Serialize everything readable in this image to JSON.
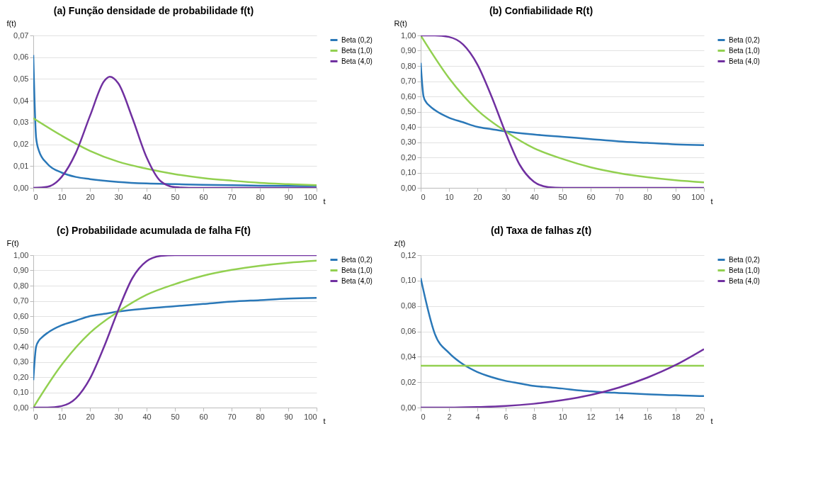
{
  "chart_data": [
    {
      "type": "line",
      "title": "(a) Função densidade de probabilidade f(t)",
      "xlabel": "t",
      "ylabel": "f(t)",
      "xlim": [
        0,
        100
      ],
      "ylim": [
        0,
        0.07
      ],
      "xticks": [
        0,
        10,
        20,
        30,
        40,
        50,
        60,
        70,
        80,
        90,
        100
      ],
      "yticks": [
        {
          "value": 0,
          "label": "0,00"
        },
        {
          "value": 0.01,
          "label": "0,01"
        },
        {
          "value": 0.02,
          "label": "0,02"
        },
        {
          "value": 0.03,
          "label": "0,03"
        },
        {
          "value": 0.04,
          "label": "0,04"
        },
        {
          "value": 0.05,
          "label": "0,05"
        },
        {
          "value": 0.06,
          "label": "0,06"
        },
        {
          "value": 0.07,
          "label": "0,07"
        }
      ],
      "grid": "y",
      "legend": "right",
      "series": [
        {
          "name": "Beta (0,2)",
          "color": "#2a78b8",
          "x": [
            0,
            1,
            2,
            5,
            10,
            15,
            20,
            30,
            40,
            50,
            60,
            70,
            80,
            90,
            100
          ],
          "values": [
            0.061,
            0.023,
            0.017,
            0.011,
            0.007,
            0.005,
            0.004,
            0.0027,
            0.002,
            0.0017,
            0.0014,
            0.0012,
            0.001,
            0.0009,
            0.0008
          ]
        },
        {
          "name": "Beta (1,0)",
          "color": "#92d050",
          "x": [
            0,
            10,
            20,
            30,
            40,
            50,
            60,
            70,
            80,
            90,
            100
          ],
          "values": [
            0.032,
            0.024,
            0.017,
            0.012,
            0.0088,
            0.0063,
            0.0045,
            0.0033,
            0.0023,
            0.0017,
            0.0012
          ]
        },
        {
          "name": "Beta (4,0)",
          "color": "#7030a0",
          "x": [
            0,
            5,
            10,
            15,
            20,
            25,
            27,
            30,
            35,
            40,
            45,
            50,
            55,
            60,
            70,
            80,
            90,
            100
          ],
          "values": [
            0,
            0.0005,
            0.005,
            0.016,
            0.033,
            0.049,
            0.051,
            0.048,
            0.032,
            0.014,
            0.003,
            0.0003,
            0,
            0,
            0,
            0,
            0,
            0
          ]
        }
      ]
    },
    {
      "type": "line",
      "title": "(b) Confiabilidade R(t)",
      "xlabel": "t",
      "ylabel": "R(t)",
      "xlim": [
        0,
        100
      ],
      "ylim": [
        0,
        1
      ],
      "xticks": [
        0,
        10,
        20,
        30,
        40,
        50,
        60,
        70,
        80,
        90,
        100
      ],
      "yticks": [
        {
          "value": 0,
          "label": "0,00"
        },
        {
          "value": 0.1,
          "label": "0,10"
        },
        {
          "value": 0.2,
          "label": "0,20"
        },
        {
          "value": 0.3,
          "label": "0,30"
        },
        {
          "value": 0.4,
          "label": "0,40"
        },
        {
          "value": 0.5,
          "label": "0,50"
        },
        {
          "value": 0.6,
          "label": "0,60"
        },
        {
          "value": 0.7,
          "label": "0,70"
        },
        {
          "value": 0.8,
          "label": "0,80"
        },
        {
          "value": 0.9,
          "label": "0,90"
        },
        {
          "value": 1,
          "label": "1,00"
        }
      ],
      "grid": "y",
      "legend": "right",
      "series": [
        {
          "name": "Beta (0,2)",
          "color": "#2a78b8",
          "x": [
            0,
            1,
            2,
            3,
            5,
            10,
            15,
            20,
            25,
            30,
            40,
            50,
            60,
            70,
            80,
            90,
            100
          ],
          "values": [
            0.82,
            0.6,
            0.56,
            0.54,
            0.51,
            0.46,
            0.43,
            0.4,
            0.385,
            0.37,
            0.35,
            0.335,
            0.32,
            0.305,
            0.295,
            0.285,
            0.28
          ]
        },
        {
          "name": "Beta (1,0)",
          "color": "#92d050",
          "x": [
            0,
            10,
            20,
            30,
            40,
            50,
            60,
            70,
            80,
            90,
            100
          ],
          "values": [
            1,
            0.72,
            0.51,
            0.37,
            0.26,
            0.19,
            0.135,
            0.097,
            0.07,
            0.05,
            0.036
          ]
        },
        {
          "name": "Beta (4,0)",
          "color": "#7030a0",
          "x": [
            0,
            5,
            10,
            15,
            20,
            25,
            30,
            35,
            40,
            45,
            50,
            60,
            70,
            80,
            90,
            100
          ],
          "values": [
            1,
            1,
            0.99,
            0.94,
            0.81,
            0.6,
            0.36,
            0.15,
            0.04,
            0.005,
            0,
            0,
            0,
            0,
            0,
            0
          ]
        }
      ]
    },
    {
      "type": "line",
      "title": "(c) Probabilidade acumulada de falha F(t)",
      "xlabel": "t",
      "ylabel": "F(t)",
      "xlim": [
        0,
        100
      ],
      "ylim": [
        0,
        1
      ],
      "xticks": [
        0,
        10,
        20,
        30,
        40,
        50,
        60,
        70,
        80,
        90,
        100
      ],
      "yticks": [
        {
          "value": 0,
          "label": "0,00"
        },
        {
          "value": 0.1,
          "label": "0,10"
        },
        {
          "value": 0.2,
          "label": "0,20"
        },
        {
          "value": 0.3,
          "label": "0,30"
        },
        {
          "value": 0.4,
          "label": "0,40"
        },
        {
          "value": 0.5,
          "label": "0,50"
        },
        {
          "value": 0.6,
          "label": "0,60"
        },
        {
          "value": 0.7,
          "label": "0,70"
        },
        {
          "value": 0.8,
          "label": "0,80"
        },
        {
          "value": 0.9,
          "label": "0,90"
        },
        {
          "value": 1,
          "label": "1,00"
        }
      ],
      "grid": "y",
      "legend": "right",
      "series": [
        {
          "name": "Beta (0,2)",
          "color": "#2a78b8",
          "x": [
            0,
            1,
            2,
            3,
            5,
            10,
            15,
            20,
            25,
            30,
            40,
            50,
            60,
            70,
            80,
            90,
            100
          ],
          "values": [
            0.18,
            0.4,
            0.44,
            0.46,
            0.49,
            0.54,
            0.57,
            0.6,
            0.615,
            0.63,
            0.65,
            0.665,
            0.68,
            0.695,
            0.705,
            0.715,
            0.72
          ]
        },
        {
          "name": "Beta (1,0)",
          "color": "#92d050",
          "x": [
            0,
            10,
            20,
            30,
            40,
            50,
            60,
            70,
            80,
            90,
            100
          ],
          "values": [
            0,
            0.28,
            0.49,
            0.63,
            0.74,
            0.81,
            0.865,
            0.903,
            0.93,
            0.95,
            0.964
          ]
        },
        {
          "name": "Beta (4,0)",
          "color": "#7030a0",
          "x": [
            0,
            5,
            10,
            15,
            20,
            25,
            30,
            35,
            40,
            45,
            50,
            60,
            70,
            80,
            90,
            100
          ],
          "values": [
            0,
            0,
            0.01,
            0.06,
            0.19,
            0.4,
            0.64,
            0.85,
            0.96,
            0.995,
            1,
            1,
            1,
            1,
            1,
            1
          ]
        }
      ]
    },
    {
      "type": "line",
      "title": "(d) Taxa de falhas z(t)",
      "xlabel": "t",
      "ylabel": "z(t)",
      "xlim": [
        0,
        20
      ],
      "ylim": [
        0,
        0.12
      ],
      "xticks": [
        0,
        2,
        4,
        6,
        8,
        10,
        12,
        14,
        16,
        18,
        20
      ],
      "yticks": [
        {
          "value": 0,
          "label": "0,00"
        },
        {
          "value": 0.02,
          "label": "0,02"
        },
        {
          "value": 0.04,
          "label": "0,04"
        },
        {
          "value": 0.06,
          "label": "0,06"
        },
        {
          "value": 0.08,
          "label": "0,08"
        },
        {
          "value": 0.1,
          "label": "0,10"
        },
        {
          "value": 0.12,
          "label": "0,12"
        }
      ],
      "grid": "y",
      "legend": "right",
      "series": [
        {
          "name": "Beta (0,2)",
          "color": "#2a78b8",
          "x": [
            0,
            1,
            2,
            3,
            4,
            5,
            6,
            7,
            8,
            9,
            10,
            11,
            12,
            13,
            14,
            15,
            16,
            17,
            18,
            19,
            20
          ],
          "values": [
            0.102,
            0.058,
            0.043,
            0.034,
            0.028,
            0.024,
            0.021,
            0.019,
            0.017,
            0.016,
            0.015,
            0.0137,
            0.0128,
            0.012,
            0.0115,
            0.011,
            0.0105,
            0.01,
            0.0097,
            0.0093,
            0.009
          ]
        },
        {
          "name": "Beta (1,0)",
          "color": "#92d050",
          "x": [
            0,
            20
          ],
          "values": [
            0.033,
            0.033
          ]
        },
        {
          "name": "Beta (4,0)",
          "color": "#7030a0",
          "x": [
            0,
            2,
            4,
            6,
            8,
            10,
            12,
            14,
            16,
            18,
            20
          ],
          "values": [
            0,
            0,
            0.0004,
            0.0012,
            0.003,
            0.0058,
            0.0099,
            0.0158,
            0.0236,
            0.0335,
            0.046
          ]
        }
      ]
    }
  ]
}
